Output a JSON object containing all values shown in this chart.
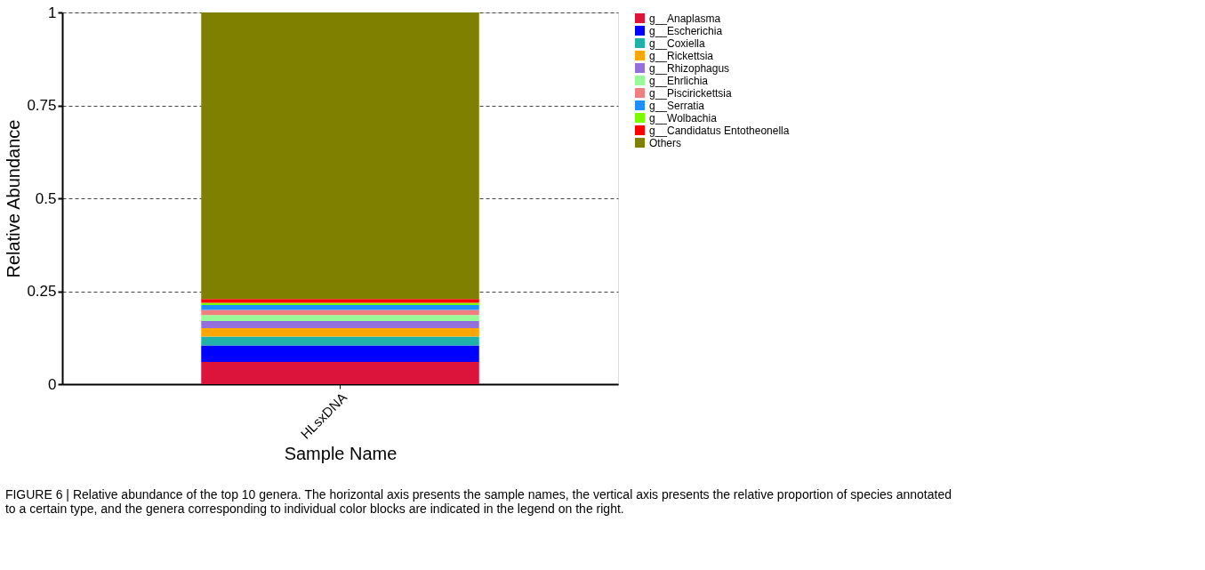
{
  "chart_data": {
    "type": "bar",
    "stacked": true,
    "xlabel": "Sample Name",
    "ylabel": "Relative Abundance",
    "categories": [
      "HLsxDNA"
    ],
    "series": [
      {
        "name": "g__Anaplasma",
        "color": "#dc143c",
        "values": [
          0.06
        ]
      },
      {
        "name": "g__Escherichia",
        "color": "#0000ff",
        "values": [
          0.044
        ]
      },
      {
        "name": "g__Coxiella",
        "color": "#20b2aa",
        "values": [
          0.024
        ]
      },
      {
        "name": "g__Rickettsia",
        "color": "#ffa500",
        "values": [
          0.023
        ]
      },
      {
        "name": "g__Rhizophagus",
        "color": "#9370db",
        "values": [
          0.019
        ]
      },
      {
        "name": "g__Ehrlichia",
        "color": "#98fb98",
        "values": [
          0.016
        ]
      },
      {
        "name": "g__Piscirickettsia",
        "color": "#f08080",
        "values": [
          0.014
        ]
      },
      {
        "name": "g__Serratia",
        "color": "#1e90ff",
        "values": [
          0.013
        ]
      },
      {
        "name": "g__Wolbachia",
        "color": "#7cfc00",
        "values": [
          0.006
        ]
      },
      {
        "name": "g__Candidatus Entotheonella",
        "color": "#ff0000",
        "values": [
          0.01
        ]
      },
      {
        "name": "Others",
        "color": "#808000",
        "values": [
          0.771
        ]
      }
    ],
    "ylim": [
      0,
      1
    ],
    "yticks": [
      0,
      0.25,
      0.5,
      0.75,
      1
    ],
    "grid": "y",
    "legend": "top right",
    "annotations": [
      "FIGURE 6 | Relative abundance of the top 10 genera. The horizontal axis presents the sample names, the vertical axis presents the relative proportion of species annotated to a certain type, and the genera corresponding to individual color blocks are indicated in the legend on the right."
    ]
  }
}
